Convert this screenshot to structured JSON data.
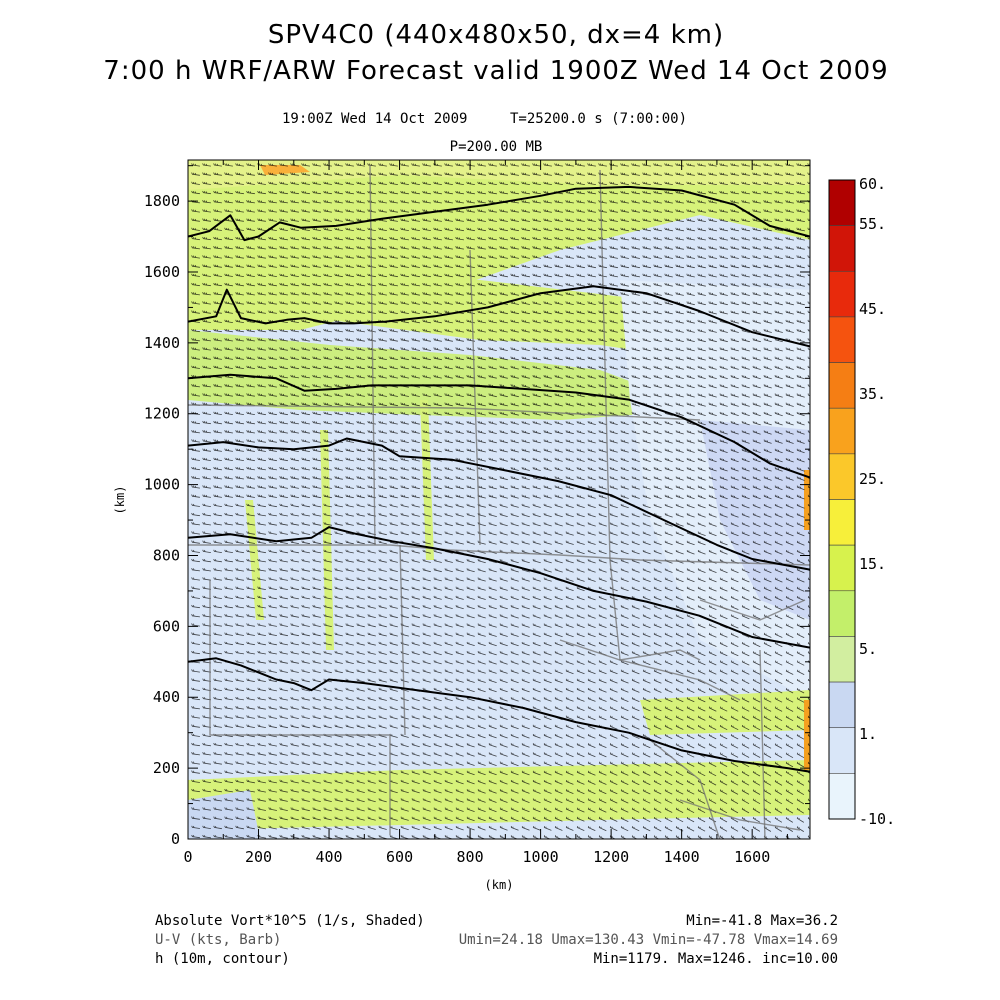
{
  "chart_data": {
    "type": "heatmap",
    "title": "SPV4C0 (440x480x50, dx=4 km)",
    "subtitle": "7:00 h WRF/ARW Forecast valid 1900Z Wed 14 Oct 2009",
    "valid_time": "19:00Z Wed 14 Oct 2009",
    "time_step": "T=25200.0 s (7:00:00)",
    "level": "P=200.00 MB",
    "xlabel": "(km)",
    "ylabel": "(km)",
    "xlim": [
      0,
      1764
    ],
    "ylim": [
      0,
      1916
    ],
    "x_ticks": [
      "0",
      "200",
      "400",
      "600",
      "800",
      "1000",
      "1200",
      "1400",
      "1600"
    ],
    "y_ticks": [
      "0",
      "200",
      "400",
      "600",
      "800",
      "1000",
      "1200",
      "1400",
      "1600",
      "1800"
    ],
    "colorbar": {
      "labels": [
        "60.",
        "55.",
        "45.",
        "35.",
        "25.",
        "15.",
        "5.",
        "1.",
        "-10."
      ],
      "colors": [
        "#b00000",
        "#d11508",
        "#e82a0c",
        "#f5530f",
        "#f57e14",
        "#f9a21d",
        "#fbc82a",
        "#f7ef3a",
        "#d7f24d",
        "#c3ef6a",
        "#d2eea0",
        "#c9d8f2",
        "#d9e6f8",
        "#e9f4fc"
      ]
    },
    "contours_km": [
      [
        [
          0,
          1700
        ],
        [
          60,
          1715
        ],
        [
          120,
          1760
        ],
        [
          160,
          1690
        ],
        [
          200,
          1700
        ],
        [
          260,
          1740
        ],
        [
          320,
          1725
        ],
        [
          420,
          1730
        ],
        [
          550,
          1750
        ],
        [
          700,
          1770
        ],
        [
          850,
          1790
        ],
        [
          1000,
          1815
        ],
        [
          1100,
          1835
        ],
        [
          1250,
          1840
        ],
        [
          1400,
          1830
        ],
        [
          1550,
          1790
        ],
        [
          1650,
          1730
        ],
        [
          1764,
          1700
        ]
      ],
      [
        [
          0,
          1460
        ],
        [
          80,
          1475
        ],
        [
          110,
          1550
        ],
        [
          150,
          1470
        ],
        [
          220,
          1455
        ],
        [
          280,
          1465
        ],
        [
          330,
          1470
        ],
        [
          400,
          1455
        ],
        [
          470,
          1455
        ],
        [
          560,
          1460
        ],
        [
          700,
          1475
        ],
        [
          850,
          1500
        ],
        [
          1000,
          1540
        ],
        [
          1150,
          1560
        ],
        [
          1300,
          1540
        ],
        [
          1450,
          1490
        ],
        [
          1600,
          1430
        ],
        [
          1764,
          1390
        ]
      ],
      [
        [
          0,
          1300
        ],
        [
          120,
          1310
        ],
        [
          250,
          1300
        ],
        [
          330,
          1265
        ],
        [
          420,
          1270
        ],
        [
          520,
          1280
        ],
        [
          650,
          1280
        ],
        [
          800,
          1280
        ],
        [
          950,
          1270
        ],
        [
          1100,
          1260
        ],
        [
          1250,
          1240
        ],
        [
          1400,
          1190
        ],
        [
          1550,
          1120
        ],
        [
          1650,
          1060
        ],
        [
          1764,
          1020
        ]
      ],
      [
        [
          0,
          1110
        ],
        [
          100,
          1120
        ],
        [
          200,
          1105
        ],
        [
          300,
          1100
        ],
        [
          400,
          1110
        ],
        [
          450,
          1130
        ],
        [
          550,
          1110
        ],
        [
          600,
          1080
        ],
        [
          750,
          1070
        ],
        [
          900,
          1040
        ],
        [
          1050,
          1010
        ],
        [
          1200,
          970
        ],
        [
          1350,
          900
        ],
        [
          1500,
          830
        ],
        [
          1600,
          790
        ],
        [
          1764,
          760
        ]
      ],
      [
        [
          0,
          850
        ],
        [
          120,
          860
        ],
        [
          250,
          840
        ],
        [
          350,
          850
        ],
        [
          400,
          880
        ],
        [
          480,
          860
        ],
        [
          580,
          840
        ],
        [
          700,
          820
        ],
        [
          850,
          790
        ],
        [
          1000,
          750
        ],
        [
          1150,
          700
        ],
        [
          1300,
          670
        ],
        [
          1450,
          630
        ],
        [
          1600,
          570
        ],
        [
          1764,
          540
        ]
      ],
      [
        [
          0,
          500
        ],
        [
          80,
          510
        ],
        [
          150,
          490
        ],
        [
          250,
          450
        ],
        [
          300,
          440
        ],
        [
          350,
          420
        ],
        [
          400,
          450
        ],
        [
          500,
          440
        ],
        [
          650,
          420
        ],
        [
          800,
          400
        ],
        [
          950,
          370
        ],
        [
          1100,
          330
        ],
        [
          1250,
          300
        ],
        [
          1400,
          250
        ],
        [
          1550,
          220
        ],
        [
          1700,
          200
        ],
        [
          1764,
          190
        ]
      ]
    ]
  },
  "footer": {
    "left": [
      "Absolute Vort*10^5 (1/s, Shaded)",
      "U-V (kts, Barb)",
      "h (10m, contour)"
    ],
    "right": [
      "Min=-41.8 Max=36.2",
      "Umin=24.18 Umax=130.43 Vmin=-47.78 Vmax=14.69",
      "Min=1179. Max=1246. inc=10.00"
    ]
  }
}
